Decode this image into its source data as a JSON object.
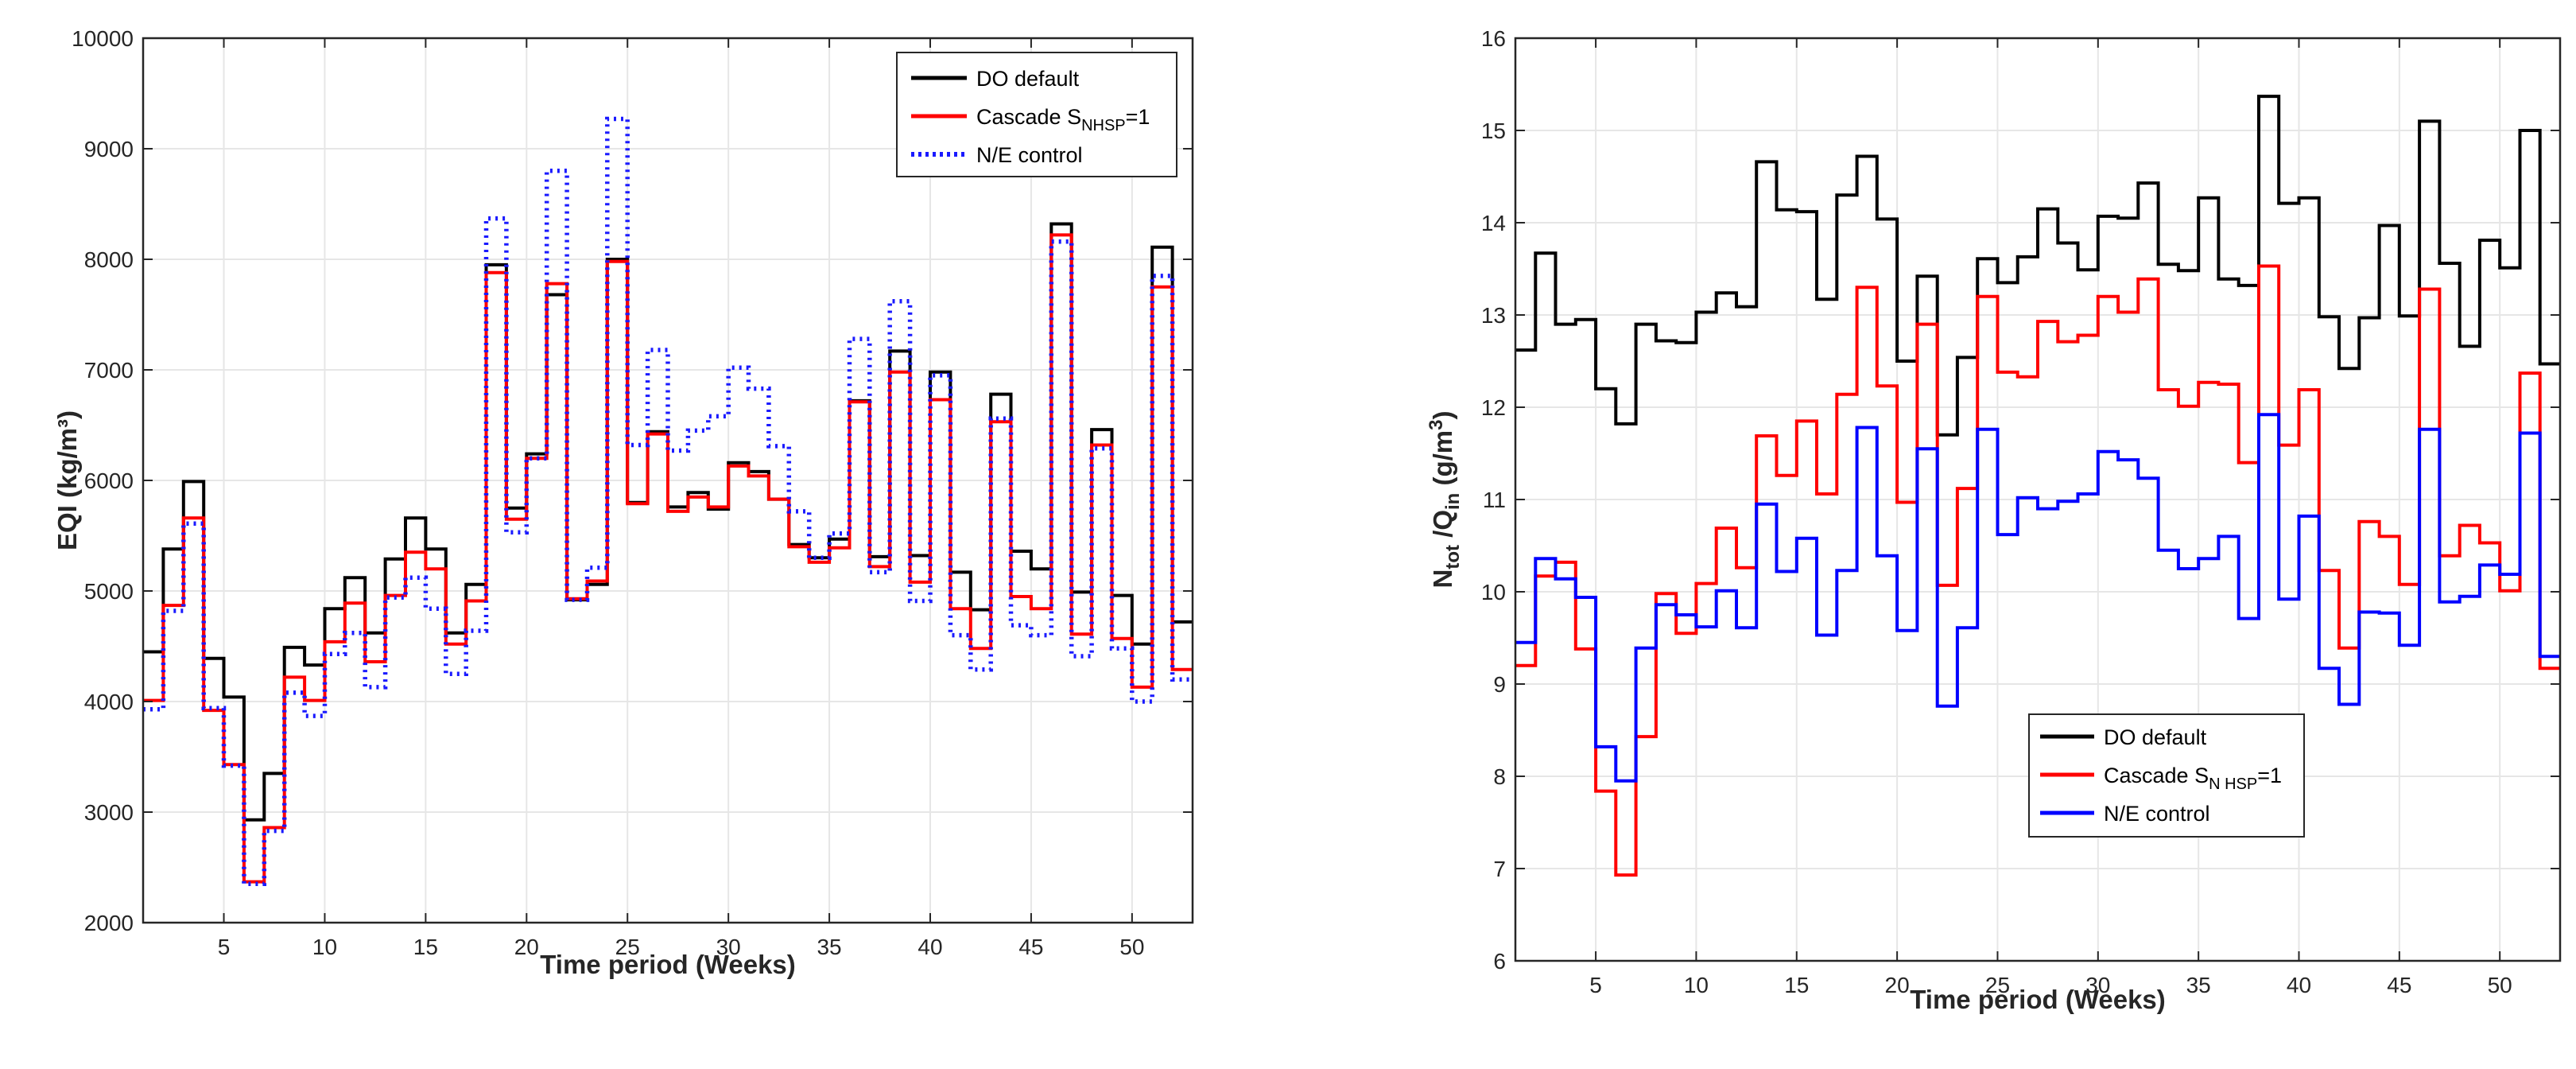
{
  "colors": {
    "do_default": "#000000",
    "cascade": "#ff0000",
    "ne_left": "#1a1aff",
    "ne_right": "#0000ff",
    "grid": "#e6e6e6",
    "axis": "#262626"
  },
  "chart_data": [
    {
      "type": "line",
      "style": "step",
      "title": "",
      "xlabel": "Time period (Weeks)",
      "ylabel": "EQI (kg/m³)",
      "xlim": [
        1,
        53
      ],
      "ylim": [
        2000,
        10000
      ],
      "xticks": [
        5,
        10,
        15,
        20,
        25,
        30,
        35,
        40,
        45,
        50
      ],
      "xtick_labels": [
        "5",
        "10",
        "15",
        "20",
        "25",
        "30",
        "35",
        "40",
        "45",
        "50"
      ],
      "yticks": [
        2000,
        3000,
        4000,
        5000,
        6000,
        7000,
        8000,
        9000,
        10000
      ],
      "ytick_labels": [
        "2000",
        "3000",
        "4000",
        "5000",
        "6000",
        "7000",
        "8000",
        "9000",
        "10000"
      ],
      "grid": true,
      "legend_position": "top-right",
      "x": [
        1,
        2,
        3,
        4,
        5,
        6,
        7,
        8,
        9,
        10,
        11,
        12,
        13,
        14,
        15,
        16,
        17,
        18,
        19,
        20,
        21,
        22,
        23,
        24,
        25,
        26,
        27,
        28,
        29,
        30,
        31,
        32,
        33,
        34,
        35,
        36,
        37,
        38,
        39,
        40,
        41,
        42,
        43,
        44,
        45,
        46,
        47,
        48,
        49,
        50,
        51,
        52
      ],
      "series": [
        {
          "name": "DO default",
          "name_main": "DO default",
          "name_sub": "",
          "name_suffix": "",
          "color": "#000000",
          "dash": "solid",
          "values": [
            4450,
            5380,
            5990,
            4390,
            4040,
            2930,
            3350,
            4490,
            4330,
            4840,
            5120,
            4620,
            5290,
            5660,
            5380,
            4620,
            5060,
            7950,
            5750,
            6240,
            7680,
            4920,
            5060,
            8000,
            5800,
            6440,
            5760,
            5890,
            5740,
            6160,
            6080,
            5830,
            5420,
            5300,
            5470,
            6720,
            5310,
            7170,
            5320,
            6980,
            5170,
            4830,
            6780,
            5360,
            5200,
            8320,
            4990,
            6460,
            4960,
            4520,
            8110,
            4720
          ]
        },
        {
          "name": "Cascade SNHSP=1",
          "name_main": "Cascade S",
          "name_sub": "NHSP",
          "name_suffix": "=1",
          "color": "#ff0000",
          "dash": "solid",
          "values": [
            4010,
            4870,
            5660,
            3920,
            3430,
            2370,
            2860,
            4220,
            4010,
            4540,
            4890,
            4360,
            4960,
            5350,
            5200,
            4520,
            4910,
            7880,
            5650,
            6200,
            7780,
            4930,
            5090,
            7980,
            5790,
            6420,
            5720,
            5850,
            5760,
            6130,
            6040,
            5830,
            5400,
            5260,
            5390,
            6710,
            5220,
            6980,
            5080,
            6730,
            4840,
            4480,
            6530,
            4950,
            4840,
            8220,
            4610,
            6320,
            4570,
            4130,
            7750,
            4290
          ]
        },
        {
          "name": "N/E control",
          "name_main": "N/E control",
          "name_sub": "",
          "name_suffix": "",
          "color": "#1a1aff",
          "dash": "dotted",
          "values": [
            3930,
            4820,
            5610,
            3940,
            3420,
            2350,
            2830,
            4080,
            3870,
            4430,
            4620,
            4130,
            4940,
            5120,
            4840,
            4250,
            4640,
            8370,
            5530,
            6200,
            8800,
            4920,
            5210,
            9270,
            6320,
            7180,
            6270,
            6450,
            6580,
            7020,
            6830,
            6310,
            5720,
            5300,
            5520,
            7280,
            5170,
            7620,
            4910,
            6950,
            4600,
            4290,
            6560,
            4690,
            4600,
            8160,
            4410,
            6290,
            4480,
            4000,
            7850,
            4200
          ]
        }
      ]
    },
    {
      "type": "line",
      "style": "step",
      "title": "",
      "xlabel": "Time period (Weeks)",
      "ylabel": "Ntot/Qin (g/m³)",
      "ylabel_parts": {
        "main1": "N",
        "sub1": "tot",
        "main2": " /Q",
        "sub2": "in",
        "main3": " (g/m",
        "sup": "3",
        "main4": ")"
      },
      "xlim": [
        1,
        53
      ],
      "ylim": [
        6,
        16
      ],
      "xticks": [
        5,
        10,
        15,
        20,
        25,
        30,
        35,
        40,
        45,
        50
      ],
      "xtick_labels": [
        "5",
        "10",
        "15",
        "20",
        "25",
        "30",
        "35",
        "40",
        "45",
        "50"
      ],
      "yticks": [
        6,
        7,
        8,
        9,
        10,
        11,
        12,
        13,
        14,
        15,
        16
      ],
      "ytick_labels": [
        "6",
        "7",
        "8",
        "9",
        "10",
        "11",
        "12",
        "13",
        "14",
        "15",
        "16"
      ],
      "grid": true,
      "legend_position": "bottom-center",
      "x": [
        1,
        2,
        3,
        4,
        5,
        6,
        7,
        8,
        9,
        10,
        11,
        12,
        13,
        14,
        15,
        16,
        17,
        18,
        19,
        20,
        21,
        22,
        23,
        24,
        25,
        26,
        27,
        28,
        29,
        30,
        31,
        32,
        33,
        34,
        35,
        36,
        37,
        38,
        39,
        40,
        41,
        42,
        43,
        44,
        45,
        46,
        47,
        48,
        49,
        50,
        51,
        52
      ],
      "series": [
        {
          "name": "DO default",
          "name_main": "DO default",
          "name_sub": "",
          "name_suffix": "",
          "color": "#000000",
          "dash": "solid",
          "values": [
            12.62,
            13.67,
            12.9,
            12.95,
            12.2,
            11.82,
            12.9,
            12.72,
            12.7,
            13.03,
            13.24,
            13.09,
            14.66,
            14.14,
            14.12,
            13.17,
            14.3,
            14.72,
            14.04,
            12.5,
            13.42,
            11.7,
            12.54,
            13.61,
            13.35,
            13.63,
            14.15,
            13.78,
            13.49,
            14.07,
            14.05,
            14.43,
            13.55,
            13.48,
            14.27,
            13.39,
            13.32,
            15.37,
            14.21,
            14.27,
            12.98,
            12.42,
            12.97,
            13.97,
            12.99,
            15.1,
            13.56,
            12.66,
            13.81,
            13.51,
            15.0,
            12.47
          ]
        },
        {
          "name": "Cascade SNHSP=1",
          "name_main": "Cascade S",
          "name_sub": "N HSP",
          "name_suffix": "=1",
          "color": "#ff0000",
          "dash": "solid",
          "values": [
            9.2,
            10.17,
            10.32,
            9.38,
            7.84,
            6.93,
            8.43,
            9.98,
            9.55,
            10.09,
            10.69,
            10.26,
            11.69,
            11.26,
            11.85,
            11.06,
            12.14,
            13.3,
            12.23,
            10.97,
            12.9,
            10.07,
            11.12,
            13.2,
            12.38,
            12.33,
            12.93,
            12.71,
            12.78,
            13.2,
            13.03,
            13.39,
            12.19,
            12.01,
            12.27,
            12.25,
            11.4,
            13.53,
            11.59,
            12.19,
            10.23,
            9.39,
            10.76,
            10.6,
            10.08,
            13.28,
            10.39,
            10.72,
            10.53,
            10.01,
            12.37,
            9.17
          ]
        },
        {
          "name": "N/E control",
          "name_main": "N/E control",
          "name_sub": "",
          "name_suffix": "",
          "color": "#0000ff",
          "dash": "solid",
          "values": [
            9.45,
            10.36,
            10.14,
            9.94,
            8.32,
            7.95,
            9.39,
            9.86,
            9.75,
            9.62,
            10.01,
            9.61,
            10.95,
            10.22,
            10.58,
            9.53,
            10.23,
            11.78,
            10.39,
            9.58,
            11.55,
            8.76,
            9.61,
            11.76,
            10.62,
            11.02,
            10.9,
            10.98,
            11.06,
            11.52,
            11.43,
            11.23,
            10.45,
            10.25,
            10.36,
            10.6,
            9.71,
            11.92,
            9.92,
            10.82,
            9.17,
            8.78,
            9.78,
            9.77,
            9.42,
            11.76,
            9.89,
            9.95,
            10.29,
            10.19,
            11.72,
            9.3
          ]
        }
      ]
    }
  ]
}
